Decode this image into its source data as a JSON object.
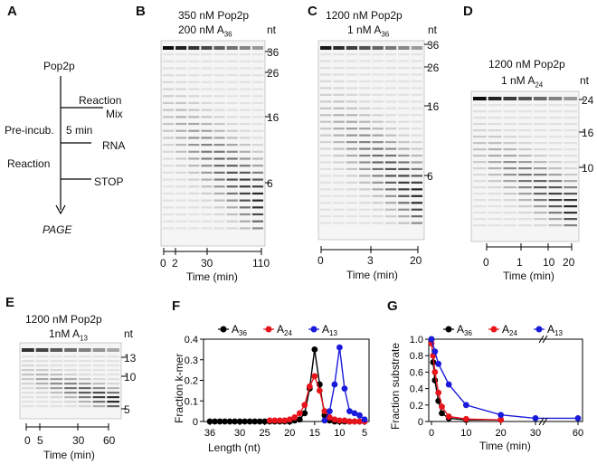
{
  "panel_letters": {
    "a": "A",
    "b": "B",
    "c": "C",
    "d": "D",
    "e": "E",
    "f": "F",
    "g": "G"
  },
  "schematic": {
    "top": "Pop2p",
    "reaction_mix_1": "Reaction",
    "reaction_mix_2": "Mix",
    "preincub": "Pre-incub.",
    "five_min": "5 min",
    "rna": "RNA",
    "reaction": "Reaction",
    "stop": "STOP",
    "page": "PAGE"
  },
  "gel_b": {
    "title_1": "350 nM Pop2p",
    "title_2": "200 nM A",
    "title_2_sub": "36",
    "nt": "nt",
    "markers": [
      "36",
      "26",
      "16",
      "6"
    ],
    "time_ticks": [
      "0",
      "2",
      "30",
      "110"
    ],
    "xlabel": "Time (min)"
  },
  "gel_c": {
    "title_1": "1200 nM Pop2p",
    "title_2": "1 nM A",
    "title_2_sub": "36",
    "nt": "nt",
    "markers": [
      "36",
      "26",
      "16",
      "6"
    ],
    "time_ticks": [
      "0",
      "3",
      "20"
    ],
    "xlabel": "Time (min)"
  },
  "gel_d": {
    "title_1": "1200 nM Pop2p",
    "title_2": "1 nM A",
    "title_2_sub": "24",
    "nt": "nt",
    "markers": [
      "24",
      "16",
      "10"
    ],
    "time_ticks": [
      "0",
      "1",
      "10",
      "20"
    ],
    "xlabel": "Time (min)"
  },
  "gel_e": {
    "title_1": "1200 nM Pop2p",
    "title_2": "1nM A",
    "title_2_sub": "13",
    "nt": "nt",
    "markers": [
      "13",
      "10",
      "5"
    ],
    "time_ticks": [
      "0",
      "5",
      "30",
      "60"
    ],
    "xlabel": "Time (min)"
  },
  "chart_data": [
    {
      "type": "line",
      "title": "",
      "xlabel": "Length (nt)",
      "ylabel": "Fraction k-mer",
      "xlim": [
        36,
        5
      ],
      "ylim": [
        0,
        0.4
      ],
      "xticks": [
        "36",
        "30",
        "25",
        "20",
        "15",
        "10",
        "5"
      ],
      "yticks": [
        "0",
        "0.1",
        "0.2",
        "0.3",
        "0.4"
      ],
      "legend": [
        {
          "name": "A",
          "sub": "36",
          "color": "#000000"
        },
        {
          "name": "A",
          "sub": "24",
          "color": "#e8141c"
        },
        {
          "name": "A",
          "sub": "13",
          "color": "#1a1adb"
        }
      ],
      "series": [
        {
          "name": "A36",
          "color": "#000000",
          "x": [
            36,
            35,
            34,
            33,
            32,
            31,
            30,
            29,
            28,
            27,
            26,
            25,
            24,
            23,
            22,
            21,
            20,
            19,
            18,
            17,
            16,
            15,
            14,
            13,
            12,
            11,
            10,
            9,
            8,
            7,
            6,
            5
          ],
          "y": [
            0,
            0,
            0,
            0,
            0,
            0,
            0,
            0,
            0,
            0,
            0,
            0,
            0,
            0,
            0,
            0,
            0,
            0.005,
            0.01,
            0.04,
            0.16,
            0.35,
            0.18,
            0.03,
            0.005,
            0,
            0,
            0,
            0,
            0,
            0,
            0
          ]
        },
        {
          "name": "A24",
          "color": "#e8141c",
          "x": [
            24,
            23,
            22,
            21,
            20,
            19,
            18,
            17,
            16,
            15,
            14,
            13,
            12,
            11,
            10,
            9,
            8,
            7,
            6,
            5
          ],
          "y": [
            0.005,
            0.005,
            0.005,
            0.005,
            0.01,
            0.02,
            0.04,
            0.08,
            0.17,
            0.22,
            0.15,
            0.05,
            0.02,
            0.01,
            0.005,
            0.005,
            0,
            0,
            0,
            0
          ]
        },
        {
          "name": "A13",
          "color": "#1a1adb",
          "x": [
            13,
            12,
            11,
            10,
            9,
            8,
            7,
            6,
            5
          ],
          "y": [
            0.005,
            0.05,
            0.18,
            0.36,
            0.16,
            0.05,
            0.04,
            0.03,
            0.01
          ]
        }
      ]
    },
    {
      "type": "line",
      "title": "",
      "xlabel": "Time (min)",
      "ylabel": "Fraction substrate",
      "xlim": [
        0,
        60
      ],
      "ylim": [
        0,
        1.0
      ],
      "xticks": [
        "0",
        "10",
        "20",
        "30",
        "60"
      ],
      "yticks": [
        "0",
        "0.2",
        "0.4",
        "0.6",
        "0.8",
        "1.0"
      ],
      "axis_break": "between 30 and 60",
      "legend": [
        {
          "name": "A",
          "sub": "36",
          "color": "#000000"
        },
        {
          "name": "A",
          "sub": "24",
          "color": "#e8141c"
        },
        {
          "name": "A",
          "sub": "13",
          "color": "#1a1adb"
        }
      ],
      "series": [
        {
          "name": "A36",
          "color": "#000000",
          "x": [
            0,
            0.5,
            1,
            2,
            3,
            5,
            10,
            20
          ],
          "y": [
            1.0,
            0.72,
            0.5,
            0.25,
            0.1,
            0.04,
            0.02,
            0.02
          ]
        },
        {
          "name": "A24",
          "color": "#e8141c",
          "x": [
            0,
            0.5,
            1,
            2,
            3,
            5,
            10,
            20
          ],
          "y": [
            0.95,
            0.8,
            0.6,
            0.35,
            0.18,
            0.06,
            0.03,
            0.02
          ]
        },
        {
          "name": "A13",
          "color": "#1a1adb",
          "x": [
            0,
            1,
            2,
            5,
            10,
            20,
            30,
            60
          ],
          "y": [
            1.0,
            0.85,
            0.7,
            0.45,
            0.2,
            0.08,
            0.04,
            0.04
          ]
        }
      ]
    }
  ]
}
